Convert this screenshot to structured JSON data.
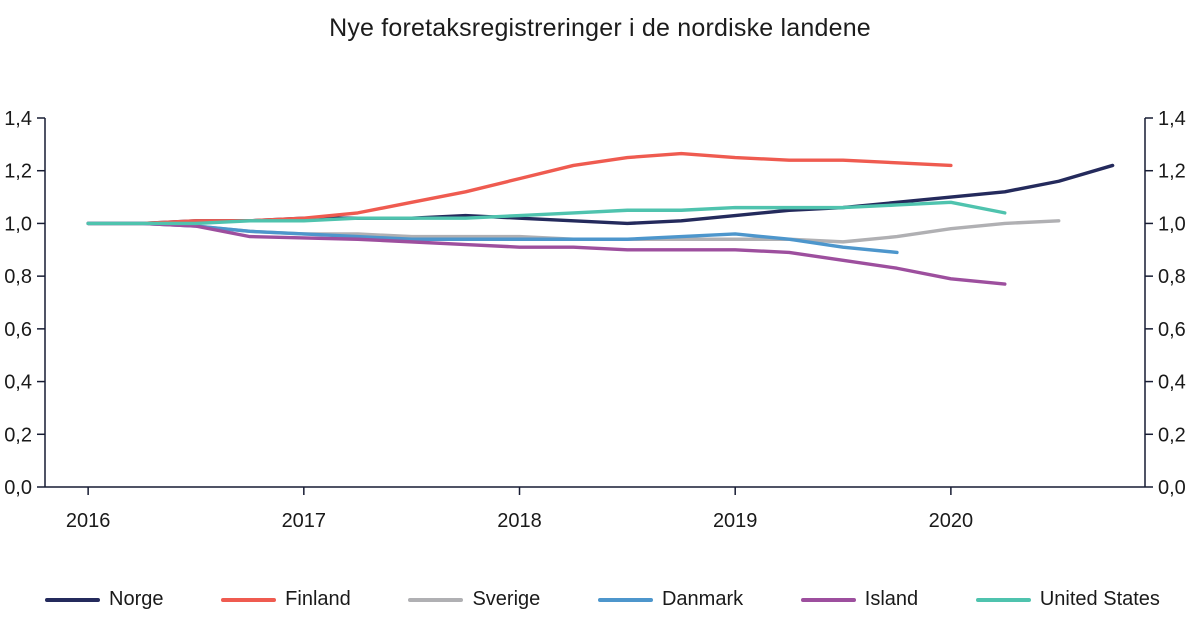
{
  "title": "Nye foretaksregistreringer i de nordiske landene",
  "chart_data": {
    "type": "line",
    "title": "Nye foretaksregistreringer i de nordiske landene",
    "xlabel": "",
    "ylabel": "",
    "xlim": [
      2015.8,
      2020.9
    ],
    "ylim": [
      0,
      1.4
    ],
    "grid": false,
    "legend_position": "bottom",
    "axis_color": "#171c33",
    "text_color": "#1a1a1a",
    "x_ticks": [
      2016,
      2017,
      2018,
      2019,
      2020
    ],
    "x_tick_labels": [
      "2016",
      "2017",
      "2018",
      "2019",
      "2020"
    ],
    "y_ticks": [
      0.0,
      0.2,
      0.4,
      0.6,
      0.8,
      1.0,
      1.2,
      1.4
    ],
    "y_tick_labels": [
      "0,0",
      "0,2",
      "0,4",
      "0,6",
      "0,8",
      "1,0",
      "1,2",
      "1,4"
    ],
    "series": [
      {
        "name": "Norge",
        "color": "#242a5c",
        "x": [
          2016,
          2016.25,
          2016.5,
          2016.75,
          2017,
          2017.25,
          2017.5,
          2017.75,
          2018,
          2018.25,
          2018.5,
          2018.75,
          2019,
          2019.25,
          2019.5,
          2019.75,
          2020,
          2020.25,
          2020.5,
          2020.75
        ],
        "values": [
          1.0,
          1.0,
          1.01,
          1.01,
          1.02,
          1.02,
          1.02,
          1.03,
          1.02,
          1.01,
          1.0,
          1.01,
          1.03,
          1.05,
          1.06,
          1.08,
          1.1,
          1.12,
          1.16,
          1.22
        ]
      },
      {
        "name": "Finland",
        "color": "#ef5b50",
        "x": [
          2016,
          2016.25,
          2016.5,
          2016.75,
          2017,
          2017.25,
          2017.5,
          2017.75,
          2018,
          2018.25,
          2018.5,
          2018.75,
          2019,
          2019.25,
          2019.5,
          2019.75,
          2020
        ],
        "values": [
          1.0,
          1.0,
          1.01,
          1.01,
          1.02,
          1.04,
          1.08,
          1.12,
          1.17,
          1.22,
          1.25,
          1.265,
          1.25,
          1.24,
          1.24,
          1.23,
          1.22
        ]
      },
      {
        "name": "Sverige",
        "color": "#b0b0b3",
        "x": [
          2016,
          2016.25,
          2016.5,
          2016.75,
          2017,
          2017.25,
          2017.5,
          2017.75,
          2018,
          2018.25,
          2018.5,
          2018.75,
          2019,
          2019.25,
          2019.5,
          2019.75,
          2020,
          2020.25,
          2020.5
        ],
        "values": [
          1.0,
          1.0,
          0.99,
          0.97,
          0.96,
          0.96,
          0.95,
          0.95,
          0.95,
          0.94,
          0.94,
          0.94,
          0.94,
          0.94,
          0.93,
          0.95,
          0.98,
          1.0,
          1.01
        ]
      },
      {
        "name": "Danmark",
        "color": "#4d96cc",
        "x": [
          2016,
          2016.25,
          2016.5,
          2016.75,
          2017,
          2017.25,
          2017.5,
          2017.75,
          2018,
          2018.25,
          2018.5,
          2018.75,
          2019,
          2019.25,
          2019.5,
          2019.75
        ],
        "values": [
          1.0,
          1.0,
          0.99,
          0.97,
          0.96,
          0.95,
          0.94,
          0.94,
          0.94,
          0.94,
          0.94,
          0.95,
          0.96,
          0.94,
          0.91,
          0.89
        ]
      },
      {
        "name": "Island",
        "color": "#9d4f9e",
        "x": [
          2016,
          2016.25,
          2016.5,
          2016.75,
          2017,
          2017.25,
          2017.5,
          2017.75,
          2018,
          2018.25,
          2018.5,
          2018.75,
          2019,
          2019.25,
          2019.5,
          2019.75,
          2020,
          2020.25
        ],
        "values": [
          1.0,
          1.0,
          0.99,
          0.95,
          0.945,
          0.94,
          0.93,
          0.92,
          0.91,
          0.91,
          0.9,
          0.9,
          0.9,
          0.89,
          0.86,
          0.83,
          0.79,
          0.77
        ]
      },
      {
        "name": "United States",
        "color": "#4fc3ae",
        "x": [
          2016,
          2016.25,
          2016.5,
          2016.75,
          2017,
          2017.25,
          2017.5,
          2017.75,
          2018,
          2018.25,
          2018.5,
          2018.75,
          2019,
          2019.25,
          2019.5,
          2019.75,
          2020,
          2020.25
        ],
        "values": [
          1.0,
          1.0,
          1.0,
          1.01,
          1.01,
          1.02,
          1.02,
          1.02,
          1.03,
          1.04,
          1.05,
          1.05,
          1.06,
          1.06,
          1.06,
          1.07,
          1.08,
          1.04
        ]
      }
    ]
  }
}
